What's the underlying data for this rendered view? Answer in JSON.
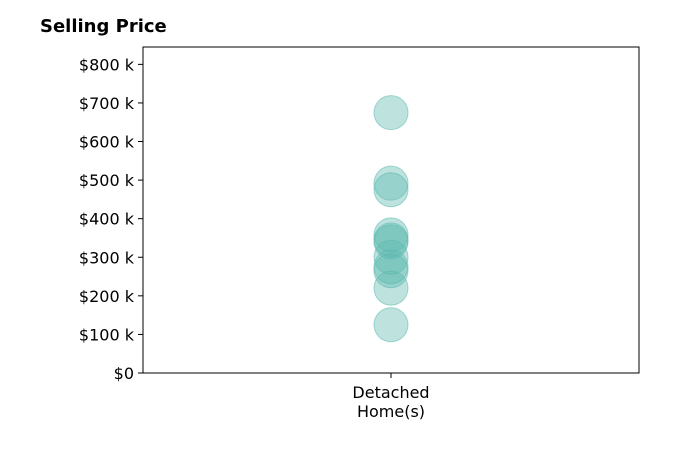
{
  "chart_data": {
    "type": "scatter",
    "title": "Selling Price",
    "xlabel": "",
    "ylabel": "",
    "categories": [
      [
        "Detached",
        "Home(s)"
      ]
    ],
    "ylim": [
      0,
      845
    ],
    "y_ticks": [
      0,
      100,
      200,
      300,
      400,
      500,
      600,
      700,
      800
    ],
    "y_tick_labels": [
      "$0",
      "$100 k",
      "$200 k",
      "$300 k",
      "$400 k",
      "$500 k",
      "$600 k",
      "$700 k",
      "$800 k"
    ],
    "series": [
      {
        "category_index": 0,
        "values": [
          675,
          492,
          475,
          358,
          345,
          340,
          300,
          275,
          265,
          220,
          125
        ]
      }
    ],
    "grid": false,
    "legend": "none",
    "marker_color": "#5db8ae",
    "marker_opacity": 0.4
  }
}
